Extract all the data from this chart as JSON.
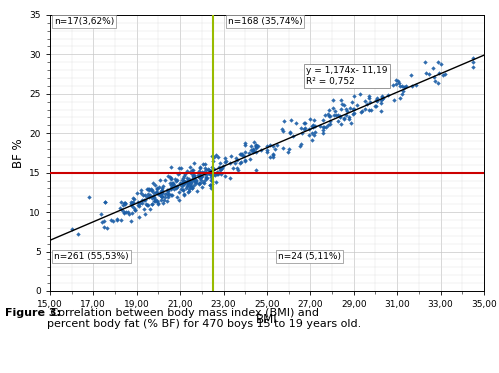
{
  "xlim": [
    15.0,
    35.0
  ],
  "ylim": [
    0,
    35
  ],
  "xticks": [
    15.0,
    17.0,
    19.0,
    21.0,
    23.0,
    25.0,
    27.0,
    29.0,
    31.0,
    33.0,
    35.0
  ],
  "yticks": [
    0,
    5,
    10,
    15,
    20,
    25,
    30,
    35
  ],
  "xlabel": "BMI",
  "ylabel": "BF %",
  "scatter_color": "#1a5da6",
  "regression_slope": 1.174,
  "regression_intercept": -11.19,
  "r_squared": 0.752,
  "hline_y": 15.0,
  "hline_color": "#cc0000",
  "vline_x": 22.5,
  "vline_color": "#99bb00",
  "eq_text": "y = 1,174x- 11,19",
  "r2_text": "R² = 0,752",
  "label_top_left": "n=17(3,62%)",
  "label_top_right": "n=168 (35,74%)",
  "label_bot_left": "n=261 (55,53%)",
  "label_bot_right": "n=24 (5,11%)",
  "caption_bold": "Figure 3:",
  "caption_normal": " Correlation between body mass index (BMI) and\npercent body fat (% BF) for 470 boys 15 to 19 years old.",
  "seed": 42
}
